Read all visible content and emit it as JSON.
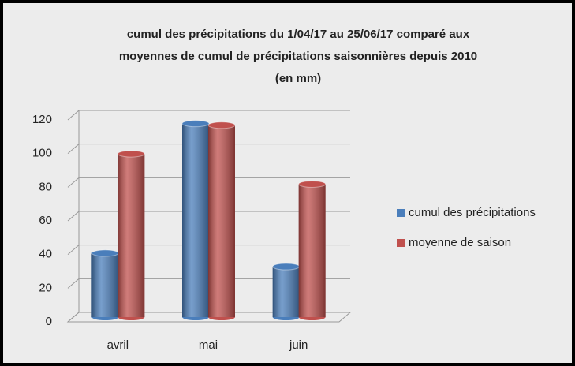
{
  "chart_data": {
    "type": "bar3d",
    "title": [
      "cumul des précipitations du 1/04/17 au 25/06/17 comparé aux",
      "moyennes de cumul de précipitations  saisonnières depuis 2010",
      "(en mm)"
    ],
    "categories": [
      "avril",
      "mai",
      "juin"
    ],
    "series": [
      {
        "name": "cumul des précipitations",
        "color": "#4a7ebb",
        "values": [
          38,
          115,
          30
        ]
      },
      {
        "name": "moyenne de saison",
        "color": "#c0504d",
        "values": [
          97,
          114,
          79
        ]
      }
    ],
    "ylim": [
      0,
      120
    ],
    "yticks": [
      0,
      20,
      40,
      60,
      80,
      100,
      120
    ],
    "grid": true,
    "legend": "right"
  }
}
